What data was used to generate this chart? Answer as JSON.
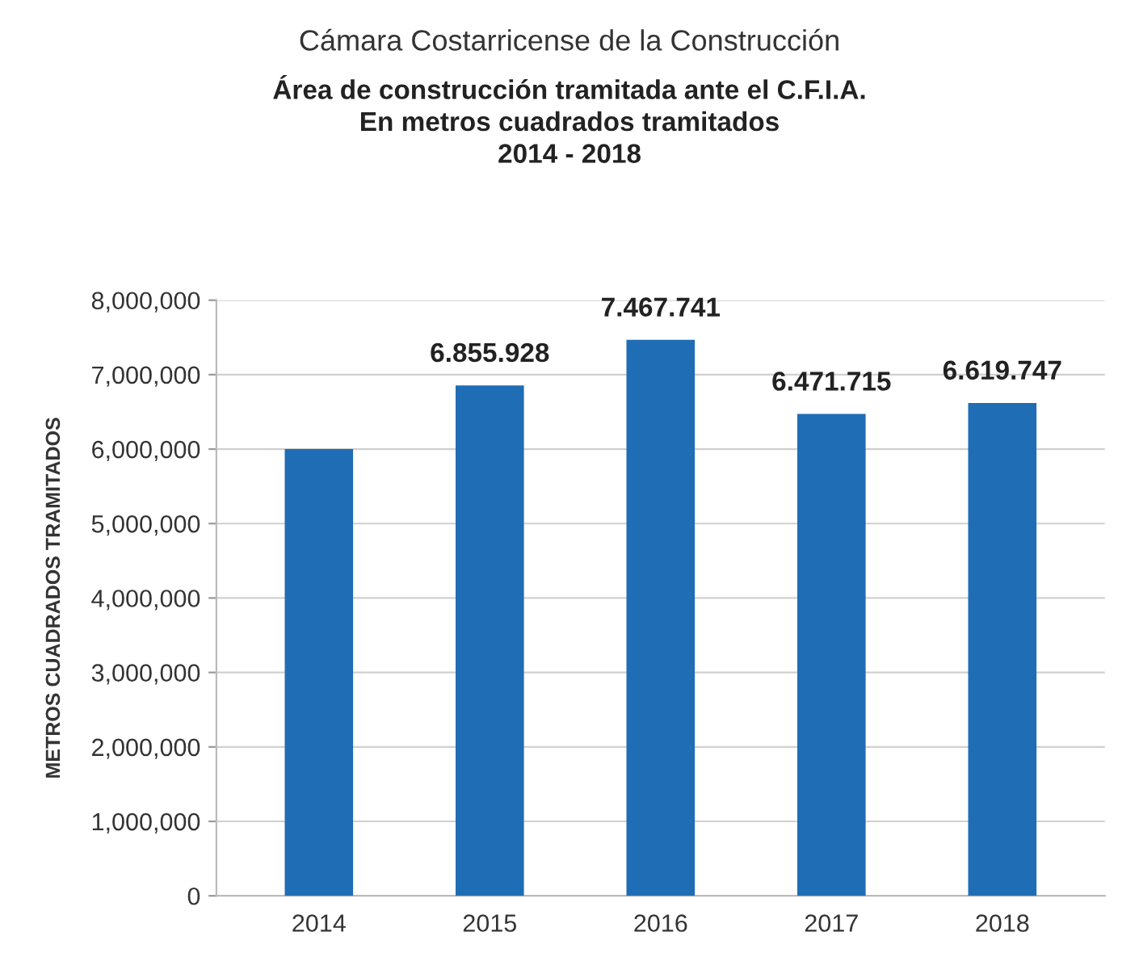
{
  "chart_data": {
    "type": "bar",
    "title": "Cámara Costarricense de la Construcción",
    "subtitle": "Área de construcción tramitada ante el C.F.I.A.\nEn metros cuadrados tramitados\n2014 - 2018",
    "ylabel": "METROS CUADRADOS TRAMITADOS",
    "categories": [
      "2014",
      "2015",
      "2016",
      "2017",
      "2018"
    ],
    "values": [
      6000000,
      6855928,
      7467741,
      6471715,
      6619747
    ],
    "value_labels": [
      null,
      "6.855.928",
      "7.467.741",
      "6.471.715",
      "6.619.747"
    ],
    "color": "#1f6db5",
    "ylim": [
      0,
      8000000
    ],
    "yticks": [
      0,
      {
        "value": 1000000,
        "label": "1,000,000"
      },
      {
        "value": 2000000,
        "label": "2,000,000"
      },
      {
        "value": 3000000,
        "label": "3,000,000"
      },
      {
        "value": 4000000,
        "label": "4,000,000"
      },
      {
        "value": 5000000,
        "label": "5,000,000"
      },
      {
        "value": 6000000,
        "label": "6,000,000"
      },
      {
        "value": 7000000,
        "label": "7,000,000"
      },
      {
        "value": 8000000,
        "label": "8,000,000"
      }
    ],
    "grid": "y",
    "legend": false
  }
}
